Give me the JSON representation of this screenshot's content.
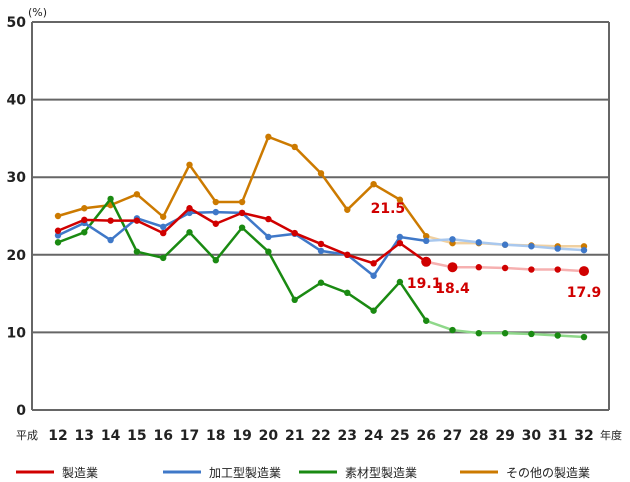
{
  "chart_data": {
    "type": "line",
    "ylabel": "(%)",
    "ylim": [
      0,
      50
    ],
    "yticks": [
      0,
      10,
      20,
      30,
      40,
      50
    ],
    "x_prefix": "平成",
    "x_suffix": "年度",
    "categories": [
      "12",
      "13",
      "14",
      "15",
      "16",
      "17",
      "18",
      "19",
      "20",
      "21",
      "22",
      "23",
      "24",
      "25",
      "26",
      "27",
      "28",
      "29",
      "30",
      "31",
      "32"
    ],
    "actual_until": "26",
    "series": [
      {
        "name": "製造業",
        "color": "#d00000",
        "light": "#f6b0b0",
        "values": [
          23.1,
          24.5,
          24.4,
          24.4,
          22.8,
          26.0,
          24.0,
          25.4,
          24.6,
          22.8,
          21.4,
          20.0,
          18.9,
          21.5,
          19.1,
          18.4,
          18.4,
          18.3,
          18.1,
          18.1,
          17.9
        ]
      },
      {
        "name": "加工型製造業",
        "color": "#3f78c8",
        "light": "#a9c8ee",
        "values": [
          22.5,
          24.1,
          21.9,
          24.7,
          23.6,
          25.4,
          25.5,
          25.4,
          22.3,
          22.7,
          20.5,
          20.0,
          17.3,
          22.3,
          21.8,
          22.0,
          21.6,
          21.3,
          21.1,
          20.8,
          20.6
        ]
      },
      {
        "name": "素材型製造業",
        "color": "#1a8a12",
        "light": "#8fd88a",
        "values": [
          21.6,
          22.9,
          27.2,
          20.4,
          19.6,
          22.9,
          19.3,
          23.5,
          20.4,
          14.2,
          16.4,
          15.1,
          12.8,
          16.5,
          11.5,
          10.3,
          9.9,
          9.9,
          9.8,
          9.6,
          9.4
        ]
      },
      {
        "name": "その他の製造業",
        "color": "#cc7a00",
        "light": "#f0d0a0",
        "values": [
          25.0,
          26.0,
          26.4,
          27.8,
          24.9,
          31.6,
          26.8,
          26.8,
          35.2,
          33.9,
          30.5,
          25.8,
          29.1,
          27.1,
          22.4,
          21.5,
          21.5,
          21.3,
          21.2,
          21.1,
          21.1
        ]
      }
    ],
    "annotations": [
      {
        "x": "25",
        "value": "21.5"
      },
      {
        "x": "26",
        "value": "19.1"
      },
      {
        "x": "27",
        "value": "18.4"
      },
      {
        "x": "32",
        "value": "17.9"
      }
    ]
  }
}
